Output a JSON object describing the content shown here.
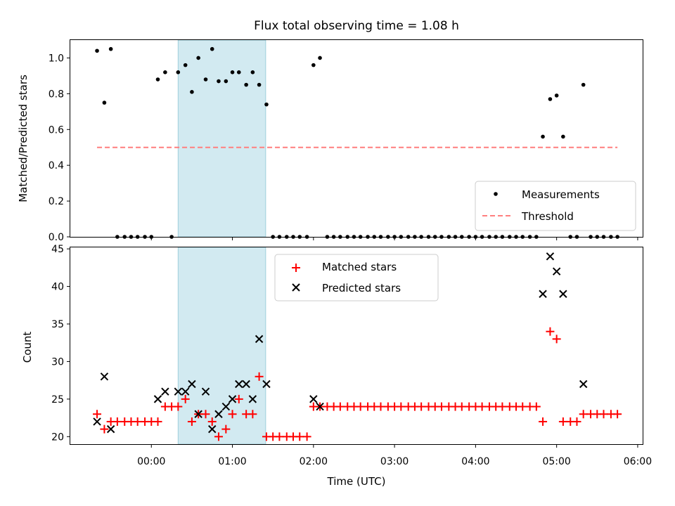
{
  "chart_data": [
    {
      "type": "scatter",
      "title": "Flux total observing time = 1.08 h",
      "xlabel": "",
      "ylabel": "Matched/Predicted stars",
      "ylim": [
        0,
        1.1
      ],
      "yticks": [
        "0.0",
        "0.2",
        "0.4",
        "0.6",
        "0.8",
        "1.0"
      ],
      "shaded_region": {
        "from": 0.33,
        "to": 1.41,
        "color": "#add8e6"
      },
      "legend_position": "lower-right",
      "series": [
        {
          "name": "Measurements",
          "marker": "dot",
          "color": "#000000",
          "points": [
            [
              -0.67,
              1.04
            ],
            [
              -0.58,
              0.75
            ],
            [
              -0.5,
              1.05
            ],
            [
              -0.42,
              0.0
            ],
            [
              -0.33,
              0.0
            ],
            [
              -0.25,
              0.0
            ],
            [
              -0.17,
              0.0
            ],
            [
              -0.08,
              0.0
            ],
            [
              0.0,
              0.0
            ],
            [
              0.08,
              0.88
            ],
            [
              0.17,
              0.92
            ],
            [
              0.25,
              0.0
            ],
            [
              0.33,
              0.92
            ],
            [
              0.42,
              0.96
            ],
            [
              0.5,
              0.81
            ],
            [
              0.58,
              1.0
            ],
            [
              0.67,
              0.88
            ],
            [
              0.75,
              1.05
            ],
            [
              0.83,
              0.87
            ],
            [
              0.92,
              0.87
            ],
            [
              1.0,
              0.92
            ],
            [
              1.08,
              0.92
            ],
            [
              1.17,
              0.85
            ],
            [
              1.25,
              0.92
            ],
            [
              1.33,
              0.85
            ],
            [
              1.42,
              0.74
            ],
            [
              1.5,
              0.0
            ],
            [
              1.58,
              0.0
            ],
            [
              1.67,
              0.0
            ],
            [
              1.75,
              0.0
            ],
            [
              1.83,
              0.0
            ],
            [
              1.92,
              0.0
            ],
            [
              2.0,
              0.96
            ],
            [
              2.08,
              1.0
            ],
            [
              2.17,
              0.0
            ],
            [
              2.25,
              0.0
            ],
            [
              2.33,
              0.0
            ],
            [
              2.42,
              0.0
            ],
            [
              2.5,
              0.0
            ],
            [
              2.58,
              0.0
            ],
            [
              2.67,
              0.0
            ],
            [
              2.75,
              0.0
            ],
            [
              2.83,
              0.0
            ],
            [
              2.92,
              0.0
            ],
            [
              3.0,
              0.0
            ],
            [
              3.08,
              0.0
            ],
            [
              3.17,
              0.0
            ],
            [
              3.25,
              0.0
            ],
            [
              3.33,
              0.0
            ],
            [
              3.42,
              0.0
            ],
            [
              3.5,
              0.0
            ],
            [
              3.58,
              0.0
            ],
            [
              3.67,
              0.0
            ],
            [
              3.75,
              0.0
            ],
            [
              3.83,
              0.0
            ],
            [
              3.92,
              0.0
            ],
            [
              4.0,
              0.0
            ],
            [
              4.08,
              0.0
            ],
            [
              4.17,
              0.0
            ],
            [
              4.25,
              0.0
            ],
            [
              4.33,
              0.0
            ],
            [
              4.42,
              0.0
            ],
            [
              4.5,
              0.0
            ],
            [
              4.58,
              0.0
            ],
            [
              4.67,
              0.0
            ],
            [
              4.75,
              0.0
            ],
            [
              4.83,
              0.56
            ],
            [
              4.92,
              0.77
            ],
            [
              5.0,
              0.79
            ],
            [
              5.08,
              0.56
            ],
            [
              5.17,
              0.0
            ],
            [
              5.25,
              0.0
            ],
            [
              5.33,
              0.85
            ],
            [
              5.42,
              0.0
            ],
            [
              5.5,
              0.0
            ],
            [
              5.58,
              0.0
            ],
            [
              5.67,
              0.0
            ],
            [
              5.75,
              0.0
            ]
          ]
        },
        {
          "name": "Threshold",
          "marker": "dashed-line",
          "color": "#ff7f7f",
          "points": [
            [
              -0.67,
              0.5
            ],
            [
              5.75,
              0.5
            ]
          ]
        }
      ]
    },
    {
      "type": "scatter",
      "title": "",
      "xlabel": "Time (UTC)",
      "ylabel": "Count",
      "ylim": [
        19,
        45.2
      ],
      "yticks": [
        "20",
        "25",
        "30",
        "35",
        "40",
        "45"
      ],
      "xlim": [
        -1.0,
        6.07
      ],
      "xticks": [
        "00:00",
        "01:00",
        "02:00",
        "03:00",
        "04:00",
        "05:00",
        "06:00"
      ],
      "shaded_region": {
        "from": 0.33,
        "to": 1.41,
        "color": "#add8e6"
      },
      "legend_position": "upper-center",
      "series": [
        {
          "name": "Matched stars",
          "marker": "plus",
          "color": "#ff0000",
          "points": [
            [
              -0.67,
              23
            ],
            [
              -0.58,
              21
            ],
            [
              -0.5,
              22
            ],
            [
              -0.42,
              22
            ],
            [
              -0.33,
              22
            ],
            [
              -0.25,
              22
            ],
            [
              -0.17,
              22
            ],
            [
              -0.08,
              22
            ],
            [
              0.0,
              22
            ],
            [
              0.08,
              22
            ],
            [
              0.17,
              24
            ],
            [
              0.25,
              24
            ],
            [
              0.33,
              24
            ],
            [
              0.42,
              25
            ],
            [
              0.5,
              22
            ],
            [
              0.58,
              23
            ],
            [
              0.67,
              23
            ],
            [
              0.75,
              22
            ],
            [
              0.83,
              20
            ],
            [
              0.92,
              21
            ],
            [
              1.0,
              23
            ],
            [
              1.08,
              25
            ],
            [
              1.17,
              23
            ],
            [
              1.25,
              23
            ],
            [
              1.33,
              28
            ],
            [
              1.42,
              20
            ],
            [
              1.5,
              20
            ],
            [
              1.58,
              20
            ],
            [
              1.67,
              20
            ],
            [
              1.75,
              20
            ],
            [
              1.83,
              20
            ],
            [
              1.92,
              20
            ],
            [
              2.0,
              24
            ],
            [
              2.08,
              24
            ],
            [
              2.17,
              24
            ],
            [
              2.25,
              24
            ],
            [
              2.33,
              24
            ],
            [
              2.42,
              24
            ],
            [
              2.5,
              24
            ],
            [
              2.58,
              24
            ],
            [
              2.67,
              24
            ],
            [
              2.75,
              24
            ],
            [
              2.83,
              24
            ],
            [
              2.92,
              24
            ],
            [
              3.0,
              24
            ],
            [
              3.08,
              24
            ],
            [
              3.17,
              24
            ],
            [
              3.25,
              24
            ],
            [
              3.33,
              24
            ],
            [
              3.42,
              24
            ],
            [
              3.5,
              24
            ],
            [
              3.58,
              24
            ],
            [
              3.67,
              24
            ],
            [
              3.75,
              24
            ],
            [
              3.83,
              24
            ],
            [
              3.92,
              24
            ],
            [
              4.0,
              24
            ],
            [
              4.08,
              24
            ],
            [
              4.17,
              24
            ],
            [
              4.25,
              24
            ],
            [
              4.33,
              24
            ],
            [
              4.42,
              24
            ],
            [
              4.5,
              24
            ],
            [
              4.58,
              24
            ],
            [
              4.67,
              24
            ],
            [
              4.75,
              24
            ],
            [
              4.83,
              22
            ],
            [
              4.92,
              34
            ],
            [
              5.0,
              33
            ],
            [
              5.08,
              22
            ],
            [
              5.17,
              22
            ],
            [
              5.25,
              22
            ],
            [
              5.33,
              23
            ],
            [
              5.42,
              23
            ],
            [
              5.5,
              23
            ],
            [
              5.58,
              23
            ],
            [
              5.67,
              23
            ],
            [
              5.75,
              23
            ]
          ]
        },
        {
          "name": "Predicted stars",
          "marker": "x",
          "color": "#000000",
          "points": [
            [
              -0.67,
              22
            ],
            [
              -0.58,
              28
            ],
            [
              -0.5,
              21
            ],
            [
              0.08,
              25
            ],
            [
              0.17,
              26
            ],
            [
              0.33,
              26
            ],
            [
              0.42,
              26
            ],
            [
              0.5,
              27
            ],
            [
              0.58,
              23
            ],
            [
              0.67,
              26
            ],
            [
              0.75,
              21
            ],
            [
              0.83,
              23
            ],
            [
              0.92,
              24
            ],
            [
              1.0,
              25
            ],
            [
              1.08,
              27
            ],
            [
              1.17,
              27
            ],
            [
              1.25,
              25
            ],
            [
              1.33,
              33
            ],
            [
              1.42,
              27
            ],
            [
              2.0,
              25
            ],
            [
              2.08,
              24
            ],
            [
              4.83,
              39
            ],
            [
              4.92,
              44
            ],
            [
              5.0,
              42
            ],
            [
              5.08,
              39
            ],
            [
              5.33,
              27
            ]
          ]
        }
      ]
    }
  ]
}
